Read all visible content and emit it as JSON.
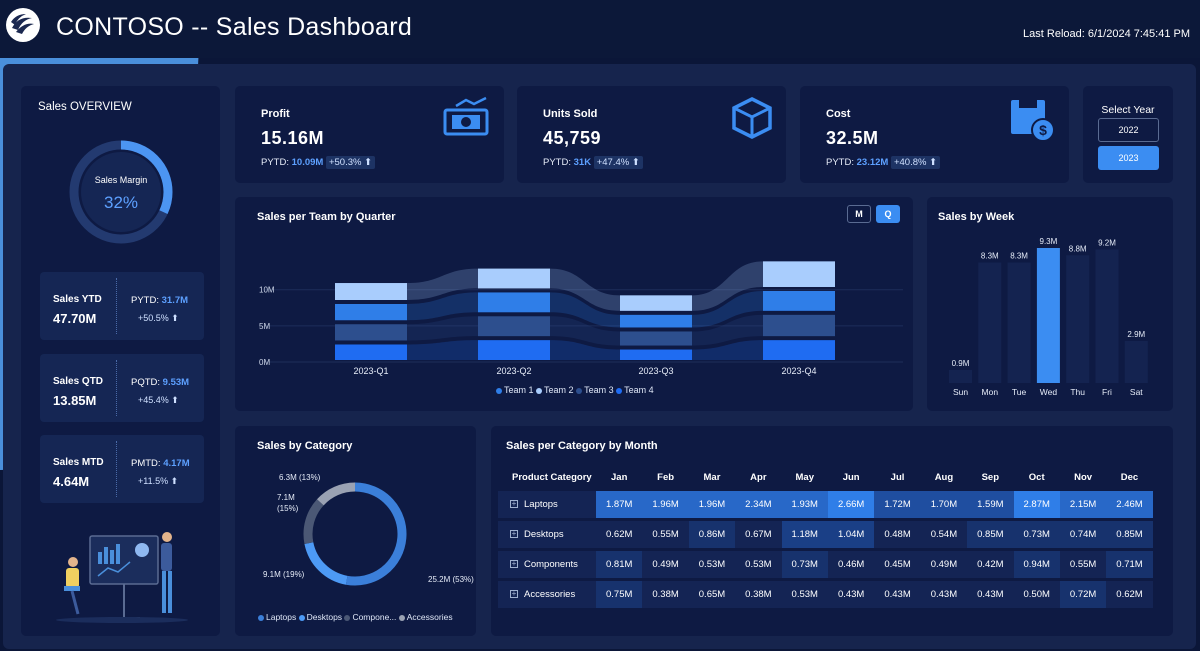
{
  "header": {
    "brand": "CONTOSO",
    "title": " -- Sales Dashboard",
    "last_reload": "Last Reload: 6/1/2024 7:45:41 PM"
  },
  "overview": {
    "title": "Sales OVERVIEW",
    "margin_label": "Sales Margin",
    "margin_value": "32%",
    "margin_fraction": 0.32,
    "metrics": [
      {
        "label": "Sales YTD",
        "value": "47.70M",
        "prev_label": "PYTD: ",
        "prev_value": "31.7M",
        "change": "+50.5% ⬆"
      },
      {
        "label": "Sales QTD",
        "value": "13.85M",
        "prev_label": "PQTD: ",
        "prev_value": "9.53M",
        "change": "+45.4% ⬆"
      },
      {
        "label": "Sales MTD",
        "value": "4.64M",
        "prev_label": "PMTD: ",
        "prev_value": "4.17M",
        "change": "+11.5% ⬆"
      }
    ]
  },
  "kpis": [
    {
      "label": "Profit",
      "value": "15.16M",
      "prev_label": "PYTD: ",
      "prev_value": "10.09M",
      "change": "+50.3% ⬆",
      "icon": "money-icon"
    },
    {
      "label": "Units Sold",
      "value": "45,759",
      "prev_label": "PYTD: ",
      "prev_value": "31K",
      "change": "+47.4% ⬆",
      "icon": "box-icon"
    },
    {
      "label": "Cost",
      "value": "32.5M",
      "prev_label": "PYTD: ",
      "prev_value": "23.12M",
      "change": "+40.8% ⬆",
      "icon": "cost-icon"
    }
  ],
  "year_select": {
    "title": "Select Year",
    "options": [
      "2022",
      "2023"
    ],
    "selected": "2023"
  },
  "team_chart": {
    "title": "Sales per Team by Quarter",
    "toggle_m": "M",
    "toggle_q": "Q",
    "active_toggle": "Q"
  },
  "week_chart": {
    "title": "Sales by Week"
  },
  "category_chart": {
    "title": "Sales by Category"
  },
  "month_table": {
    "title": "Sales per Category by Month",
    "header_first": "Product Category",
    "months": [
      "Jan",
      "Feb",
      "Mar",
      "Apr",
      "May",
      "Jun",
      "Jul",
      "Aug",
      "Sep",
      "Oct",
      "Nov",
      "Dec"
    ],
    "rows": [
      {
        "category": "Laptops",
        "values": [
          "1.87M",
          "1.96M",
          "1.96M",
          "2.34M",
          "1.93M",
          "2.66M",
          "1.72M",
          "1.70M",
          "1.59M",
          "2.87M",
          "2.15M",
          "2.46M"
        ]
      },
      {
        "category": "Desktops",
        "values": [
          "0.62M",
          "0.55M",
          "0.86M",
          "0.67M",
          "1.18M",
          "1.04M",
          "0.48M",
          "0.54M",
          "0.85M",
          "0.73M",
          "0.74M",
          "0.85M"
        ]
      },
      {
        "category": "Components",
        "values": [
          "0.81M",
          "0.49M",
          "0.53M",
          "0.53M",
          "0.73M",
          "0.46M",
          "0.45M",
          "0.49M",
          "0.42M",
          "0.94M",
          "0.55M",
          "0.71M"
        ]
      },
      {
        "category": "Accessories",
        "values": [
          "0.75M",
          "0.38M",
          "0.65M",
          "0.38M",
          "0.53M",
          "0.43M",
          "0.43M",
          "0.43M",
          "0.43M",
          "0.50M",
          "0.72M",
          "0.62M"
        ]
      }
    ]
  },
  "colors": {
    "accent": "#3b8df2",
    "team1": "#2f7ee8",
    "team2": "#a9cdfd",
    "team3": "#2d4f8e",
    "team4": "#1f6cf2"
  },
  "chart_data": [
    {
      "type": "bar",
      "title": "Sales per Team by Quarter",
      "stacked": true,
      "categories": [
        "2023-Q1",
        "2023-Q2",
        "2023-Q3",
        "2023-Q4"
      ],
      "ytick_labels": [
        "0M",
        "5M",
        "10M"
      ],
      "ylim": [
        0,
        14
      ],
      "series": [
        {
          "name": "Team 1",
          "values": [
            2.8,
            3.3,
            2.3,
            3.3
          ]
        },
        {
          "name": "Team 2",
          "values": [
            2.9,
            3.3,
            2.7,
            4.1
          ]
        },
        {
          "name": "Team 3",
          "values": [
            2.8,
            3.3,
            2.5,
            3.5
          ]
        },
        {
          "name": "Team 4",
          "values": [
            2.7,
            3.3,
            2.0,
            3.3
          ]
        }
      ],
      "legend": "bottom"
    },
    {
      "type": "bar",
      "title": "Sales by Week",
      "categories": [
        "Sun",
        "Mon",
        "Tue",
        "Wed",
        "Thu",
        "Fri",
        "Sat"
      ],
      "values": [
        0.9,
        8.3,
        8.3,
        9.3,
        8.8,
        9.2,
        2.9
      ],
      "labels": [
        "0.9M",
        "8.3M",
        "8.3M",
        "9.3M",
        "8.8M",
        "9.2M",
        "2.9M"
      ],
      "highlight": "Wed",
      "ylim": [
        0,
        9.3
      ]
    },
    {
      "type": "pie",
      "title": "Sales by Category",
      "donut": true,
      "categories": [
        "Laptops",
        "Desktops",
        "Components",
        "Accessories"
      ],
      "values": [
        25.2,
        9.1,
        7.1,
        6.3
      ],
      "labels": [
        "25.2M (53%)",
        "9.1M (19%)",
        "7.1M\n(15%)",
        "6.3M (13%)"
      ],
      "legend_labels": [
        "Laptops",
        "Desktops",
        "Compone...",
        "Accessories"
      ],
      "colors": [
        "#3b7fd9",
        "#4d9af5",
        "#4b5875",
        "#9aa2b3"
      ],
      "legend": "bottom"
    }
  ]
}
